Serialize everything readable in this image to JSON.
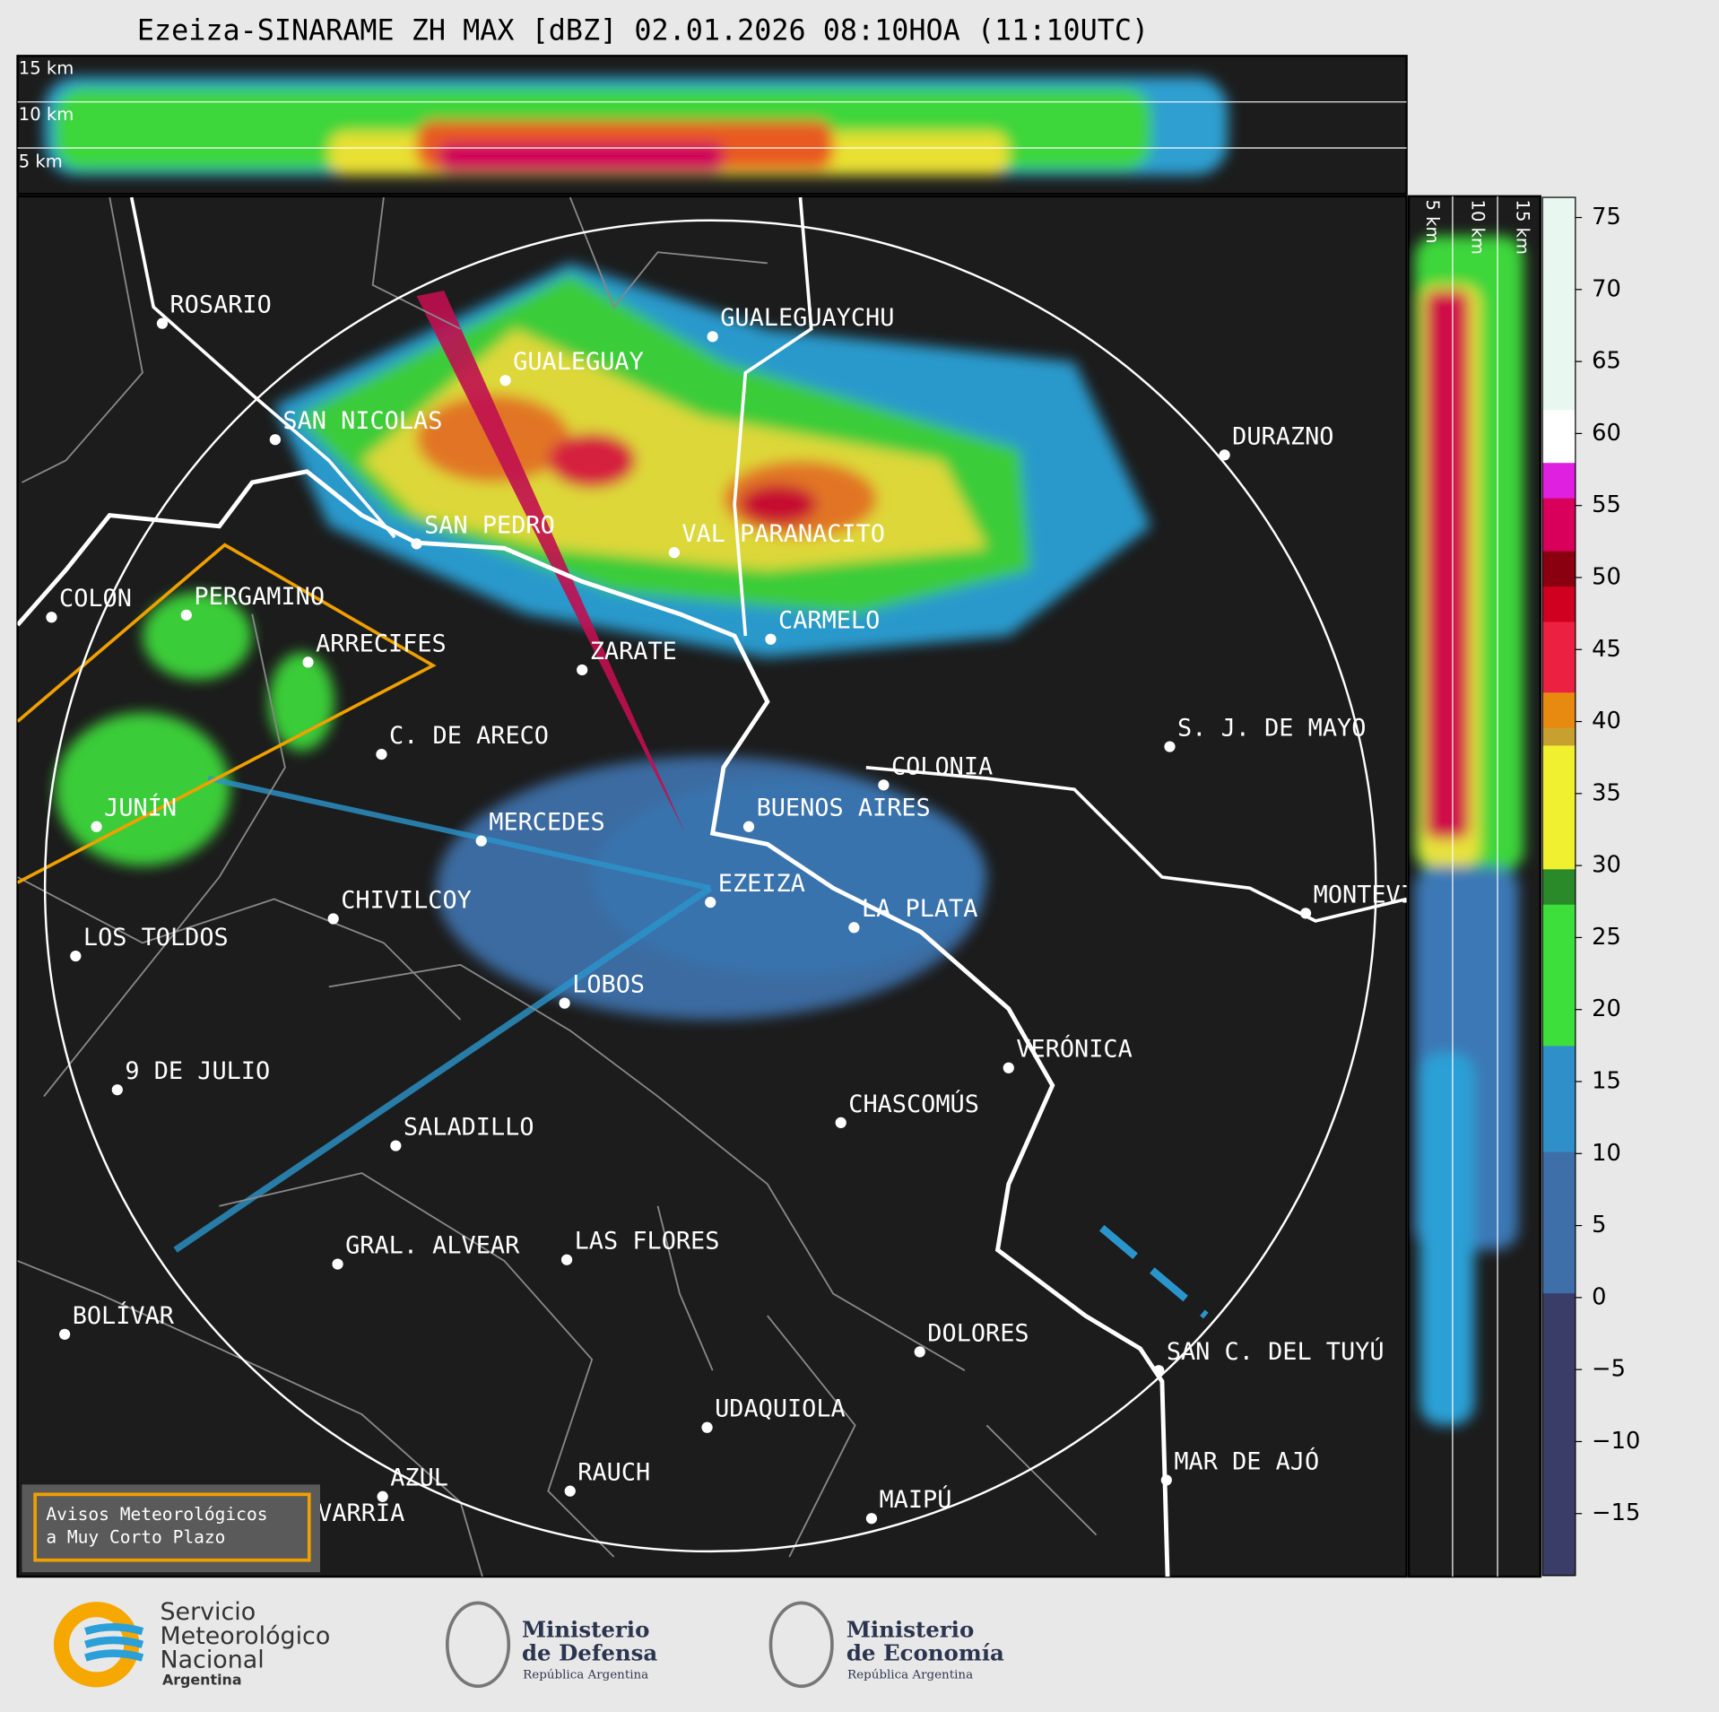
{
  "title": "Ezeiza-SINARAME ZH MAX [dBZ] 02.01.2026 08:10HOA (11:10UTC)",
  "height_panel": {
    "labels": [
      "15 km",
      "10 km",
      "5 km"
    ]
  },
  "side_panel": {
    "labels": [
      "5 km",
      "10 km",
      "15 km"
    ]
  },
  "cities": [
    "ROSARIO",
    "GUALEGUAYCHU",
    "GUALEGUAY",
    "SAN NICOLAS",
    "DURAZNO",
    "SAN PEDRO",
    "VAL PARANACITO",
    "COLON",
    "PERGAMINO",
    "CARMELO",
    "ARRECIFES",
    "ZARATE",
    "S. J. DE MAYO",
    "C. DE ARECO",
    "COLONIA",
    "BUENOS AIRES",
    "JUNÍN",
    "MERCEDES",
    "EZEIZA",
    "MONTEVIDEO",
    "LA PLATA",
    "CHIVILCOY",
    "LOS TOLDOS",
    "LOBOS",
    "VERÓNICA",
    "9 DE JULIO",
    "CHASCOMÚS",
    "SALADILLO",
    "GRAL. ALVEAR",
    "LAS FLORES",
    "BOLÍVAR",
    "DOLORES",
    "SAN C. DEL TUYÚ",
    "UDAQUIOLA",
    "MAR DE AJÓ",
    "RAUCH",
    "AZUL",
    "MAIPÚ",
    "OLAVARRÍA"
  ],
  "colorbar": {
    "lim": [
      -19.3,
      76.4
    ],
    "ticks": [
      {
        "value": -15,
        "label": "−15"
      },
      {
        "value": -10,
        "label": "−10"
      },
      {
        "value": -5,
        "label": "−5"
      },
      0,
      5,
      10,
      15,
      20,
      25,
      30,
      35,
      40,
      45,
      50,
      55,
      60,
      65,
      70,
      75
    ]
  },
  "warning": {
    "lines": [
      "Avisos Meteorológicos",
      "a Muy Corto Plazo"
    ]
  },
  "logos": {
    "smn": [
      "Servicio",
      "Meteorológico",
      "Nacional",
      "Argentina"
    ],
    "defensa": [
      "Ministerio",
      "de Defensa",
      "República Argentina"
    ],
    "economia": [
      "Ministerio",
      "de Economía",
      "República Argentina"
    ]
  }
}
